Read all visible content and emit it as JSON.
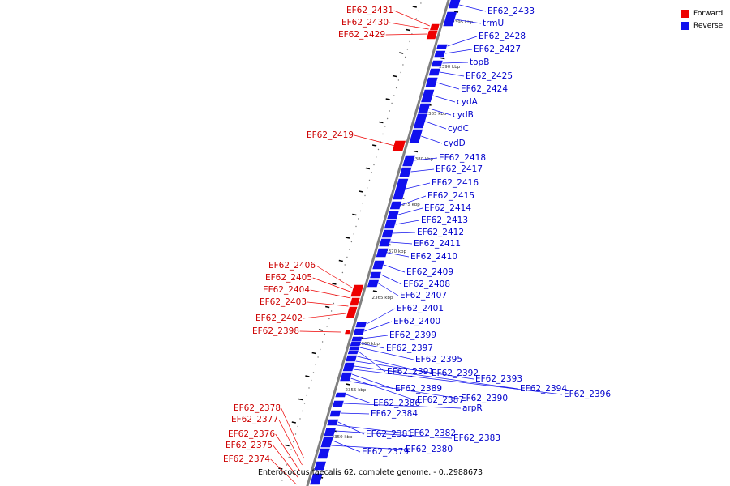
{
  "caption": "Enterococcus faecalis 62, complete genome. - 0..2988673",
  "legend": {
    "items": [
      {
        "label": "Forward",
        "color": "#ee0000"
      },
      {
        "label": "Reverse",
        "color": "#1111ee"
      }
    ]
  },
  "colors": {
    "forward": "#ee0000",
    "reverse": "#1111ee",
    "forward_label": "#cc0000",
    "reverse_label": "#0000cc",
    "backbone": "#808080"
  },
  "kbp_markers": [
    "2395 kbp",
    "2390 kbp",
    "2385 kbp",
    "2380 kbp",
    "2375 kbp",
    "2370 kbp",
    "2365 kbp",
    "2360 kbp",
    "2355 kbp",
    "2350 kbp"
  ],
  "forward_genes": [
    "EF62_2431",
    "EF62_2430",
    "EF62_2429",
    "EF62_2419",
    "EF62_2406",
    "EF62_2405",
    "EF62_2404",
    "EF62_2403",
    "EF62_2402",
    "EF62_2398",
    "EF62_2378",
    "EF62_2377",
    "EF62_2376",
    "EF62_2375",
    "EF62_2374"
  ],
  "reverse_genes": [
    "EF62_2433",
    "trmU",
    "EF62_2428",
    "EF62_2427",
    "topB",
    "EF62_2425",
    "EF62_2424",
    "cydA",
    "cydB",
    "cydC",
    "cydD",
    "EF62_2418",
    "EF62_2417",
    "EF62_2416",
    "EF62_2415",
    "EF62_2414",
    "EF62_2413",
    "EF62_2412",
    "EF62_2411",
    "EF62_2410",
    "EF62_2409",
    "EF62_2408",
    "EF62_2407",
    "EF62_2401",
    "EF62_2400",
    "EF62_2399",
    "EF62_2397",
    "EF62_2395",
    "EF62_2391",
    "EF62_2392",
    "EF62_2393",
    "EF62_2394",
    "EF62_2396",
    "EF62_2389",
    "EF62_2387",
    "EF62_2390",
    "EF62_2386",
    "arpR",
    "EF62_2384",
    "EF62_2381",
    "EF62_2382",
    "EF62_2383",
    "EF62_2379",
    "EF62_2380"
  ]
}
